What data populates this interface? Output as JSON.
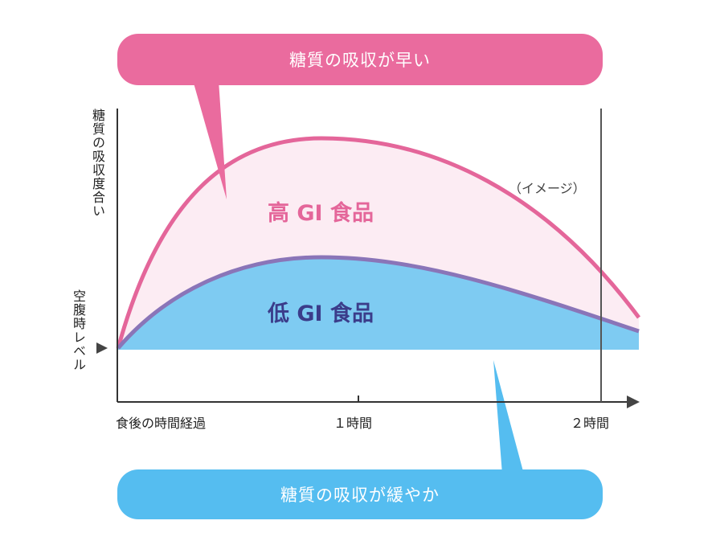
{
  "callouts": {
    "high": "糖質の吸収が早い",
    "low": "糖質の吸収が緩やか"
  },
  "y_axis": {
    "absorption_label": "糖質の吸収度合い",
    "fasting_label": "空腹時レベル"
  },
  "x_axis": {
    "start_label": "食後の時間経過",
    "tick_1h": "１時間",
    "tick_2h": "２時間"
  },
  "note": "（イメージ）",
  "series": {
    "high_gi": "高 GI 食品",
    "low_gi": "低 GI 食品"
  },
  "colors": {
    "high_callout": "#ea6b9e",
    "high_line": "#e4669a",
    "high_fill": "#fcecf3",
    "low_callout": "#55bdf0",
    "low_fill": "#7ecbf2",
    "low_line": "#8a75b8",
    "low_label": "#3b3c8a",
    "axis": "#333333"
  }
}
